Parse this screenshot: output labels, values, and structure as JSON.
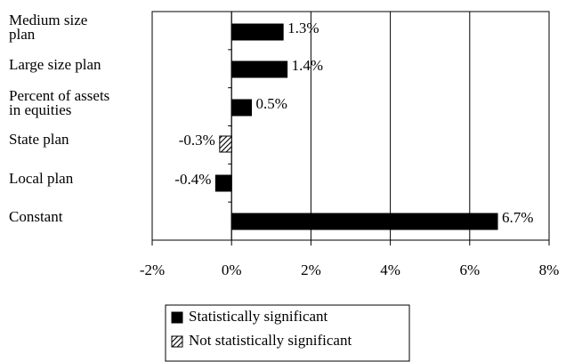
{
  "chart_data": {
    "type": "hbar",
    "categories": [
      [
        "Medium size",
        "plan"
      ],
      [
        "Large size plan"
      ],
      [
        "Percent of assets",
        "in equities"
      ],
      [
        "State plan"
      ],
      [
        "Local plan"
      ],
      [
        "Constant"
      ]
    ],
    "series": [
      {
        "name": "Statistically significant",
        "color": "#000000",
        "pattern": "solid",
        "values": [
          1.3,
          1.4,
          0.5,
          null,
          -0.4,
          6.7
        ],
        "value_labels": [
          "1.3%",
          "1.4%",
          "0.5%",
          null,
          "-0.4%",
          "6.7%"
        ]
      },
      {
        "name": "Not statistically significant",
        "color": "#000000",
        "pattern": "hatch",
        "values": [
          null,
          null,
          null,
          -0.3,
          null,
          null
        ],
        "value_labels": [
          null,
          null,
          null,
          "-0.3%",
          null,
          null
        ]
      }
    ],
    "xlim": [
      -2,
      8
    ],
    "xticks": [
      {
        "value": -2,
        "label": "-2%"
      },
      {
        "value": 0,
        "label": "0%"
      },
      {
        "value": 2,
        "label": "2%"
      },
      {
        "value": 4,
        "label": "4%"
      },
      {
        "value": 6,
        "label": "6%"
      },
      {
        "value": 8,
        "label": "8%"
      }
    ],
    "grid": true,
    "legend": "bottom"
  }
}
